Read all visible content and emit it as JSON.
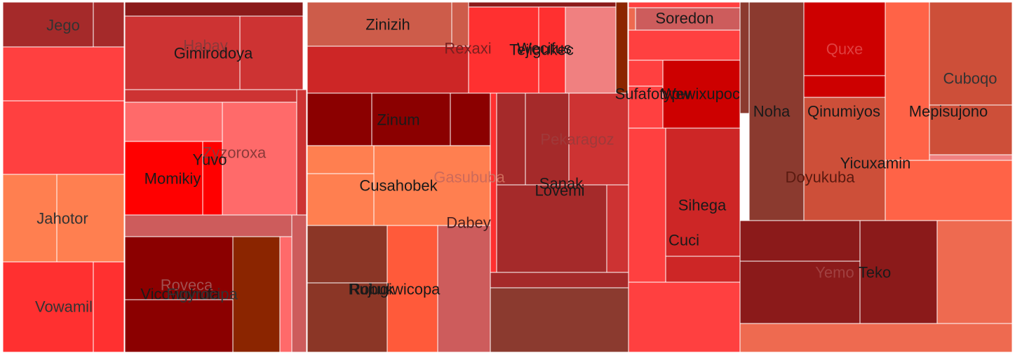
{
  "chart_data": {
    "type": "treemap",
    "groups": [
      {
        "label": "Jego",
        "color": "#a52a2a",
        "cells": [
          {
            "color": "#a52a2a"
          },
          {
            "color": "#a52a2a"
          },
          {
            "color": "#ff4040"
          },
          {
            "color": "#ff4040"
          }
        ]
      },
      {
        "label": "Jahotor",
        "color": "#ff7f50",
        "cells": [
          {
            "color": "#ff7f50"
          },
          {
            "color": "#ff7f50"
          }
        ]
      },
      {
        "label": "Vowamil",
        "color": "#ff3030",
        "cells": [
          {
            "color": "#ff3030"
          },
          {
            "color": "#ff3030"
          }
        ]
      },
      {
        "label": "Habay",
        "color": "#cd3333",
        "cells": [
          {
            "color": "#8b1a1a"
          },
          {
            "color": "#cd3333"
          },
          {
            "color": "#cd3333"
          },
          {
            "color": "#cd3333"
          },
          {
            "color": "#cd3333"
          }
        ]
      },
      {
        "label": "Gimirodoya",
        "color": "#cd3333",
        "cells": []
      },
      {
        "label": "Zyzoroxa",
        "color": "#ff6a6a",
        "cells": [
          {
            "color": "#ff6a6a"
          },
          {
            "color": "#ff6a6a"
          },
          {
            "color": "#cd5c5c"
          }
        ]
      },
      {
        "label": "Yuvo",
        "color": "#ff0000",
        "cells": [
          {
            "color": "#ff0000"
          }
        ]
      },
      {
        "label": "Momikiy",
        "color": "#ff0000",
        "cells": [
          {
            "color": "#ff0000"
          }
        ]
      },
      {
        "label": "Roveca",
        "color": "#8b0000",
        "cells": [
          {
            "color": "#8b0000"
          },
          {
            "color": "#8b0000"
          },
          {
            "color": "#8b2500"
          },
          {
            "color": "#ff6a6a"
          },
          {
            "color": "#cd5c5c"
          }
        ]
      },
      {
        "label": "Vicowohufa",
        "color": "#8b0000",
        "cells": []
      },
      {
        "label": "Figyrocipa",
        "color": "#8b0000",
        "cells": []
      },
      {
        "label": "Zinizih",
        "color": "#cd5c4a",
        "cells": [
          {
            "color": "#cd5c4a"
          },
          {
            "color": "#cd5c4a"
          },
          {
            "color": "#cd2626"
          }
        ]
      },
      {
        "label": "Rexaxi",
        "color": "#cd2626",
        "cells": []
      },
      {
        "label": "Zinum",
        "color": "#8b0000",
        "cells": [
          {
            "color": "#8b0000"
          },
          {
            "color": "#8b0000"
          },
          {
            "color": "#8b0000"
          }
        ]
      },
      {
        "label": "Cusahobek",
        "color": "#ff7f50",
        "cells": [
          {
            "color": "#ff7f50"
          },
          {
            "color": "#ff7f50"
          },
          {
            "color": "#ff7f50"
          }
        ]
      },
      {
        "label": "Robuk",
        "color": "#8b3626",
        "cells": [
          {
            "color": "#8b3626"
          },
          {
            "color": "#8b3626"
          }
        ]
      },
      {
        "label": "Rujugiwicopa",
        "color": "#ff5a3a",
        "cells": [
          {
            "color": "#ff5a3a"
          },
          {
            "color": "#cd5c5c"
          }
        ]
      },
      {
        "label": "Gasububa",
        "color": "#cd5c5c",
        "cells": []
      },
      {
        "label": "Dabey",
        "color": "#cd5c5c",
        "cells": []
      },
      {
        "label": "Tejigukec",
        "color": "#ff3030",
        "cells": [
          {
            "color": "#8b1a1a"
          },
          {
            "color": "#ff3030"
          },
          {
            "color": "#ff3030"
          },
          {
            "color": "#ff3030"
          },
          {
            "color": "#f08080"
          },
          {
            "color": "#8b2500"
          }
        ]
      },
      {
        "label": "Wecifus",
        "color": "#ff3030",
        "cells": []
      },
      {
        "label": "Pekaragoz",
        "color": "#cd3333",
        "cells": [
          {
            "color": "#a52a2a"
          },
          {
            "color": "#a52a2a"
          },
          {
            "color": "#cd3333"
          },
          {
            "color": "#cd3333"
          }
        ]
      },
      {
        "label": "Sanak",
        "color": "#a52a2a",
        "cells": [
          {
            "color": "#a52a2a"
          },
          {
            "color": "#a52a2a"
          },
          {
            "color": "#8b3a2f"
          },
          {
            "color": "#8b3a2f"
          }
        ]
      },
      {
        "label": "Lovemi",
        "color": "#a52a2a",
        "cells": []
      },
      {
        "label": "Soredon",
        "color": "#cd5c5c",
        "cells": [
          {
            "color": "#ff4040"
          },
          {
            "color": "#cd5c5c"
          },
          {
            "color": "#ff4040"
          },
          {
            "color": "#ee6a50"
          }
        ]
      },
      {
        "label": "Sufafotypw",
        "color": "#ff4040",
        "cells": [
          {
            "color": "#ff4040"
          },
          {
            "color": "#ff4040"
          }
        ]
      },
      {
        "label": "Wewixupoc",
        "color": "#cd0000",
        "cells": [
          {
            "color": "#cd0000"
          }
        ]
      },
      {
        "label": "Sihega",
        "color": "#cd2626",
        "cells": [
          {
            "color": "#ff4040"
          },
          {
            "color": "#cd2626"
          },
          {
            "color": "#cd2626"
          },
          {
            "color": "#ff4040"
          }
        ]
      },
      {
        "label": "Cuci",
        "color": "#cd2626",
        "cells": []
      },
      {
        "label": "Noha",
        "color": "#8b3a2f",
        "cells": [
          {
            "color": "#8b3a2f"
          },
          {
            "color": "#8b3a2f"
          }
        ]
      },
      {
        "label": "Quxe",
        "color": "#cd0000",
        "cells": [
          {
            "color": "#cd0000"
          },
          {
            "color": "#cd0000"
          }
        ]
      },
      {
        "label": "Qinumiyos",
        "color": "#cd4f39",
        "cells": [
          {
            "color": "#cd4f39"
          }
        ]
      },
      {
        "label": "Doyukuba",
        "color": "#8b3a2f",
        "cells": []
      },
      {
        "label": "Mepisujono",
        "color": "#ff6347",
        "cells": [
          {
            "color": "#ff6347"
          },
          {
            "color": "#ff6347"
          }
        ]
      },
      {
        "label": "Cuboqo",
        "color": "#cd4f39",
        "cells": [
          {
            "color": "#cd4f39"
          },
          {
            "color": "#cd4f39"
          },
          {
            "color": "#f08080"
          }
        ]
      },
      {
        "label": "Yicuxamin",
        "color": "#ff6347",
        "cells": []
      },
      {
        "label": "Teko",
        "color": "#8b1a1a",
        "cells": [
          {
            "color": "#8b1a1a"
          },
          {
            "color": "#8b1a1a"
          },
          {
            "color": "#8b1a1a"
          },
          {
            "color": "#ee6a50"
          },
          {
            "color": "#ee6a50"
          }
        ]
      },
      {
        "label": "Yemo",
        "color": "#8b1a1a",
        "cells": []
      }
    ],
    "labels": [
      {
        "text": "Jego",
        "color": "#333333"
      },
      {
        "text": "Habay",
        "color": "#8b3a3a"
      },
      {
        "text": "Gimirodoya",
        "color": "#1a1a1a"
      },
      {
        "text": "Zyzoroxa",
        "color": "#8b3a3a"
      },
      {
        "text": "Yuvo",
        "color": "#1a1a1a"
      },
      {
        "text": "Momikiy",
        "color": "#1a1a1a"
      },
      {
        "text": "Jahotor",
        "color": "#333333"
      },
      {
        "text": "Vowamil",
        "color": "#333333"
      },
      {
        "text": "Roveca",
        "color": "#a05050"
      },
      {
        "text": "Vicowohufa",
        "color": "#1a1a1a"
      },
      {
        "text": "Figyrocipa",
        "color": "#333333"
      },
      {
        "text": "Zinizih",
        "color": "#1a1a1a"
      },
      {
        "text": "Rexaxi",
        "color": "#7a2020"
      },
      {
        "text": "Zinum",
        "color": "#1a1a1a"
      },
      {
        "text": "Cusahobek",
        "color": "#1a1a1a"
      },
      {
        "text": "Gasububa",
        "color": "#cd6a5a"
      },
      {
        "text": "Dabey",
        "color": "#4a2020"
      },
      {
        "text": "Rujugiwicopa",
        "color": "#1a1a1a"
      },
      {
        "text": "Robuk",
        "color": "#1a1a1a"
      },
      {
        "text": "Tejigukec",
        "color": "#1a1a1a"
      },
      {
        "text": "Wecifus",
        "color": "#1a1a1a"
      },
      {
        "text": "Pekaragoz",
        "color": "#a03a3a"
      },
      {
        "text": "Sanak",
        "color": "#1a1a1a"
      },
      {
        "text": "Lovemi",
        "color": "#1a1a1a"
      },
      {
        "text": "Soredon",
        "color": "#1a1a1a"
      },
      {
        "text": "Sufafotypw",
        "color": "#1a1a1a"
      },
      {
        "text": "Wewixupoc",
        "color": "#1a1a1a"
      },
      {
        "text": "Sihega",
        "color": "#1a1a1a"
      },
      {
        "text": "Cuci",
        "color": "#1a1a1a"
      },
      {
        "text": "Noha",
        "color": "#1a1a1a"
      },
      {
        "text": "Quxe",
        "color": "#e04040"
      },
      {
        "text": "Qinumiyos",
        "color": "#1a1a1a"
      },
      {
        "text": "Mepisujono",
        "color": "#1a1a1a"
      },
      {
        "text": "Cuboqo",
        "color": "#333333"
      },
      {
        "text": "Yicuxamin",
        "color": "#1a1a1a"
      },
      {
        "text": "Doyukuba",
        "color": "#5a1a10"
      },
      {
        "text": "Yemo",
        "color": "#a04040"
      },
      {
        "text": "Teko",
        "color": "#1a1a1a"
      }
    ]
  }
}
